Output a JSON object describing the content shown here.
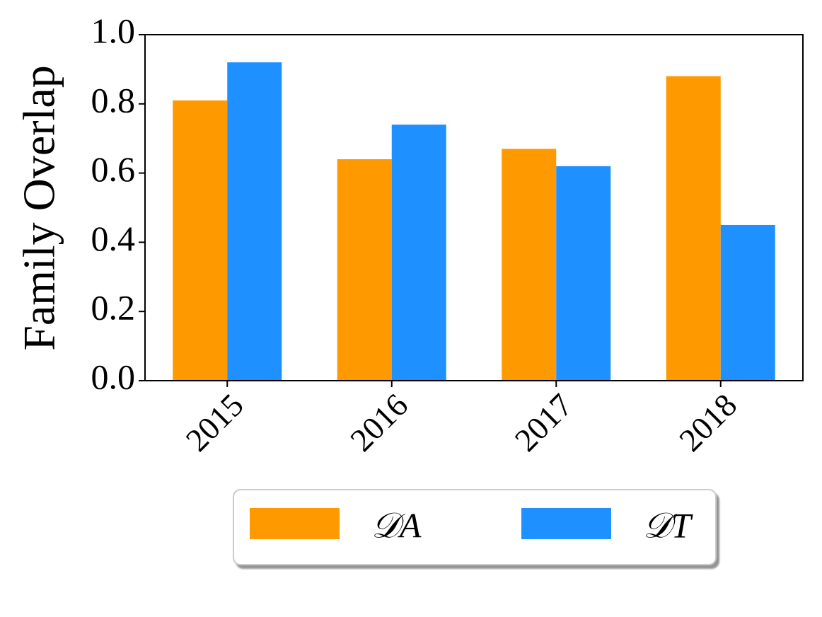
{
  "chart_data": {
    "type": "bar",
    "y_label": "Family Overlap",
    "categories": [
      "2015",
      "2016",
      "2017",
      "2018"
    ],
    "series": [
      {
        "name": "𝒟A",
        "color": "#ff9900",
        "values": [
          0.81,
          0.64,
          0.67,
          0.88
        ]
      },
      {
        "name": "𝒟T",
        "color": "#1e90ff",
        "values": [
          0.92,
          0.74,
          0.62,
          0.45
        ]
      }
    ],
    "ylim": [
      0,
      1
    ],
    "yticks": [
      {
        "value": 0,
        "label": "0.0"
      },
      0.2,
      0.4,
      0.6,
      0.8,
      {
        "value": 1,
        "label": "1.0"
      }
    ],
    "grid": false,
    "legend": "below"
  }
}
